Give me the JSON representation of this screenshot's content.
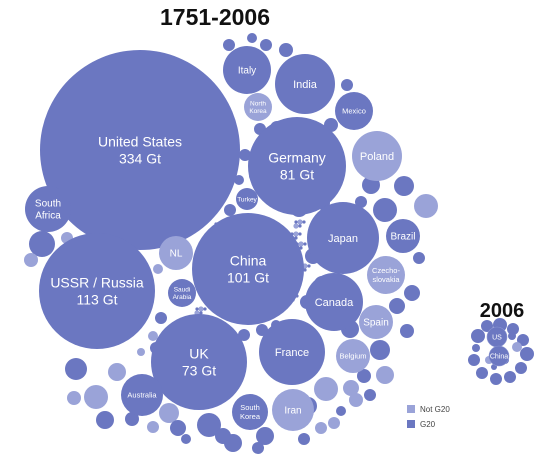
{
  "chart_data": [
    {
      "type": "bubble",
      "title": "1751-2006",
      "unit": "Gt",
      "legend": {
        "position": "bottom-right",
        "entries": [
          {
            "name": "Not G20",
            "color": "#9aa3d8"
          },
          {
            "name": "G20",
            "color": "#6b77c1"
          }
        ]
      },
      "bubbles": [
        {
          "label": "United States",
          "value": 334,
          "value_label": "334 Gt",
          "group": "G20"
        },
        {
          "label": "USSR / Russia",
          "value": 113,
          "value_label": "113 Gt",
          "group": "G20"
        },
        {
          "label": "China",
          "value": 101,
          "value_label": "101 Gt",
          "group": "G20"
        },
        {
          "label": "Germany",
          "value": 81,
          "value_label": "81 Gt",
          "group": "G20"
        },
        {
          "label": "UK",
          "value": 73,
          "value_label": "73 Gt",
          "group": "G20"
        },
        {
          "label": "Japan",
          "group": "G20"
        },
        {
          "label": "France",
          "group": "G20"
        },
        {
          "label": "Canada",
          "group": "G20"
        },
        {
          "label": "India",
          "group": "G20"
        },
        {
          "label": "Poland",
          "group": "Not G20"
        },
        {
          "label": "Italy",
          "group": "G20"
        },
        {
          "label": "South Africa",
          "group": "G20"
        },
        {
          "label": "Brazil",
          "group": "G20"
        },
        {
          "label": "Mexico",
          "group": "G20"
        },
        {
          "label": "Spain",
          "group": "Not G20"
        },
        {
          "label": "Iran",
          "group": "Not G20"
        },
        {
          "label": "Australia",
          "group": "G20"
        },
        {
          "label": "Czecho-slovakia",
          "group": "Not G20"
        },
        {
          "label": "South Korea",
          "group": "G20"
        },
        {
          "label": "Belgium",
          "group": "Not G20"
        },
        {
          "label": "NL",
          "group": "Not G20"
        },
        {
          "label": "North Korea",
          "group": "Not G20"
        },
        {
          "label": "Saudi Arabia",
          "group": "G20"
        },
        {
          "label": "Turkey",
          "group": "G20"
        }
      ]
    },
    {
      "type": "bubble",
      "title": "2006",
      "bubbles": [
        {
          "label": "US",
          "group": "G20"
        },
        {
          "label": "China",
          "group": "G20"
        }
      ]
    }
  ]
}
